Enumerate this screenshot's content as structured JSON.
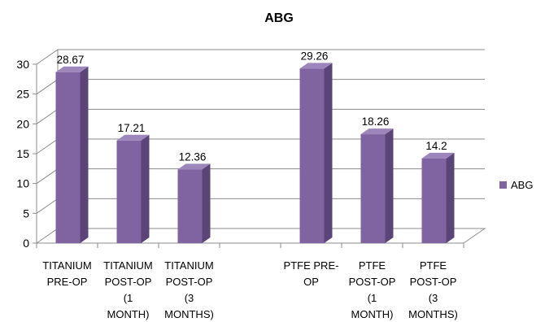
{
  "chart_data": {
    "type": "bar",
    "title": "ABG",
    "categories": [
      [
        "TITANIUM",
        "PRE-OP"
      ],
      [
        "TITANIUM",
        "POST-OP",
        "(1",
        "MONTH)"
      ],
      [
        "TITANIUM",
        "POST-OP",
        "(3",
        "MONTHS)"
      ],
      [],
      [
        "PTFE PRE-",
        "OP"
      ],
      [
        "PTFE",
        "POST-OP",
        "(1",
        "MONTH)"
      ],
      [
        "PTFE",
        "POST-OP",
        "(3",
        "MONTHS)"
      ]
    ],
    "series": [
      {
        "name": "ABG",
        "values": [
          28.67,
          17.21,
          12.36,
          null,
          29.26,
          18.26,
          14.2
        ],
        "labels": [
          "28.67",
          "17.21",
          "12.36",
          "",
          "29.26",
          "18.26",
          "14.2"
        ]
      }
    ],
    "ylim": [
      0,
      30
    ],
    "yticks": [
      0,
      5,
      10,
      15,
      20,
      25,
      30
    ],
    "grid": true,
    "legend": "right",
    "bar_color": "#8064a2",
    "bar_side_color": "#5b4578",
    "bar_top_color": "#9d86bb"
  }
}
